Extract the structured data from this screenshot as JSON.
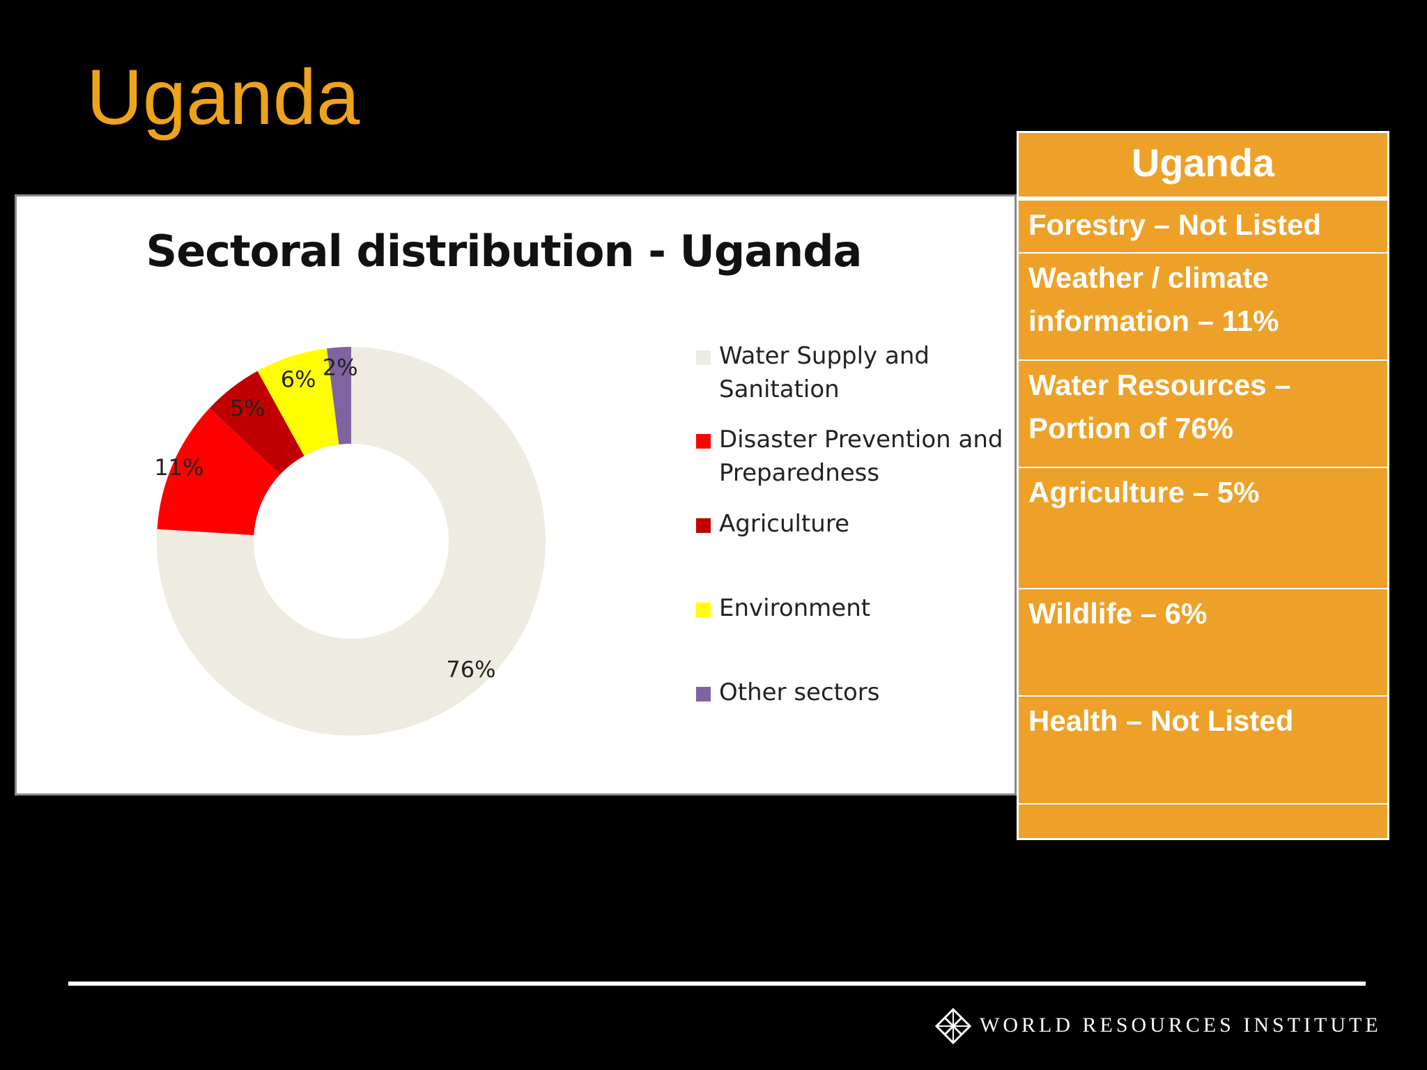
{
  "slide": {
    "title": "Uganda"
  },
  "info_table": {
    "header": "Uganda",
    "rows": [
      "Forestry – Not Listed",
      "Weather / climate information – 11%",
      "Water Resources – Portion of 76%",
      "Agriculture – 5%",
      "Wildlife – 6%",
      "Health – Not Listed",
      ""
    ]
  },
  "footer": {
    "organization": "WORLD RESOURCES INSTITUTE",
    "logo_icon": "wri-lattice-icon"
  },
  "colors": {
    "background": "#000000",
    "title": "#EEA31B",
    "table_fill": "#EDA128",
    "table_text": "#FFFFFF"
  },
  "chart_data": {
    "type": "pie",
    "variant": "donut",
    "title": "Sectoral distribution - Uganda",
    "legend_position": "right",
    "series": [
      {
        "name": "Water Supply and Sanitation",
        "value": 76,
        "label": "76%",
        "color": "#EEECE1"
      },
      {
        "name": "Disaster Prevention and Preparedness",
        "value": 11,
        "label": "11%",
        "color": "#FF0000"
      },
      {
        "name": "Agriculture",
        "value": 5,
        "label": "5%",
        "color": "#C00000"
      },
      {
        "name": "Environment",
        "value": 6,
        "label": "6%",
        "color": "#FFFF00"
      },
      {
        "name": "Other sectors",
        "value": 2,
        "label": "2%",
        "color": "#8064A2"
      }
    ]
  }
}
